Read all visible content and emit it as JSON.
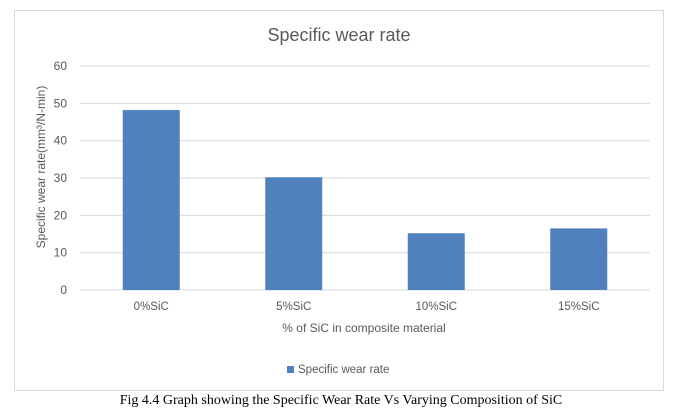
{
  "chart_data": {
    "type": "bar",
    "title": "Specific wear rate",
    "xlabel": "% of SiC in composite material",
    "ylabel": "Specific wear rate(mm³/N-min)",
    "categories": [
      "0%SiC",
      "5%SiC",
      "10%SiC",
      "15%SiC"
    ],
    "series": [
      {
        "name": "Specific wear rate",
        "values": [
          48.2,
          30.2,
          15.2,
          16.5
        ]
      }
    ],
    "ylim": [
      0,
      60
    ],
    "yticks": [
      "0",
      "10",
      "20",
      "30",
      "40",
      "50",
      "60"
    ],
    "grid": true,
    "legend_position": "bottom",
    "bar_color": "#4f81bd",
    "grid_color": "#d9d9d9",
    "text_color": "#595959"
  },
  "caption": "Fig 4.4 Graph showing the Specific Wear Rate Vs Varying Composition of SiC"
}
